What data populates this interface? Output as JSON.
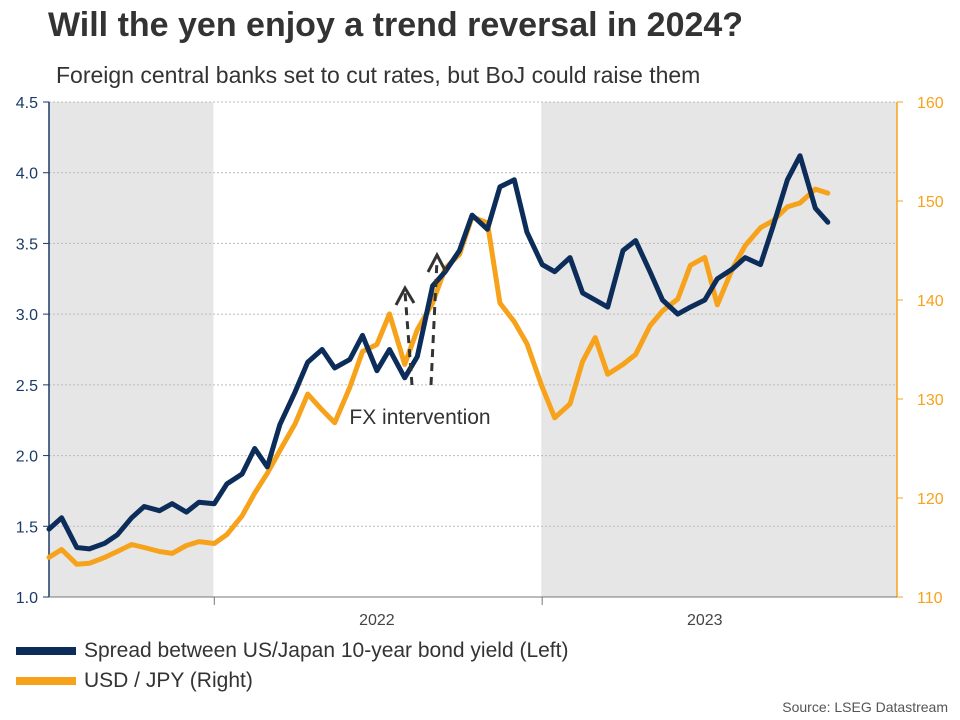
{
  "chart_data": {
    "type": "line",
    "title": "Will the yen enjoy a trend reversal in 2024?",
    "subtitle": "Foreign central banks set to cut rates, but BoJ could raise them",
    "x_tick_labels": [
      "2022",
      "2023"
    ],
    "left_axis": {
      "ylim": [
        1.0,
        4.5
      ],
      "ticks": [
        "1.0",
        "1.5",
        "2.0",
        "2.5",
        "3.0",
        "3.5",
        "4.0",
        "4.5"
      ]
    },
    "right_axis": {
      "ylim": [
        110,
        160
      ],
      "ticks": [
        "110",
        "120",
        "130",
        "140",
        "150",
        "160"
      ]
    },
    "grid": true,
    "legend_position": "bottom-left",
    "shaded_periods": [
      {
        "from": "2021-07-01",
        "to": "2021-12-31"
      },
      {
        "from": "2022-12-31",
        "to": "2024-01-31"
      }
    ],
    "annotation": "FX intervention",
    "source": "Source: LSEG Datastream",
    "series": [
      {
        "name": "Spread between US/Japan 10-year bond yield (Left)",
        "axis": "left",
        "color": "#0c2d5a",
        "points": [
          [
            "2021-07-01",
            1.48
          ],
          [
            "2021-07-15",
            1.56
          ],
          [
            "2021-08-01",
            1.35
          ],
          [
            "2021-08-15",
            1.34
          ],
          [
            "2021-09-01",
            1.38
          ],
          [
            "2021-09-15",
            1.44
          ],
          [
            "2021-10-01",
            1.56
          ],
          [
            "2021-10-15",
            1.64
          ],
          [
            "2021-11-01",
            1.61
          ],
          [
            "2021-11-15",
            1.66
          ],
          [
            "2021-12-01",
            1.6
          ],
          [
            "2021-12-15",
            1.67
          ],
          [
            "2022-01-01",
            1.66
          ],
          [
            "2022-01-15",
            1.8
          ],
          [
            "2022-02-01",
            1.87
          ],
          [
            "2022-02-15",
            2.05
          ],
          [
            "2022-03-01",
            1.92
          ],
          [
            "2022-03-15",
            2.22
          ],
          [
            "2022-04-01",
            2.45
          ],
          [
            "2022-04-15",
            2.66
          ],
          [
            "2022-05-01",
            2.75
          ],
          [
            "2022-05-15",
            2.62
          ],
          [
            "2022-06-01",
            2.68
          ],
          [
            "2022-06-15",
            2.85
          ],
          [
            "2022-07-01",
            2.6
          ],
          [
            "2022-07-15",
            2.75
          ],
          [
            "2022-08-01",
            2.55
          ],
          [
            "2022-08-15",
            2.7
          ],
          [
            "2022-09-01",
            3.2
          ],
          [
            "2022-09-15",
            3.3
          ],
          [
            "2022-10-01",
            3.45
          ],
          [
            "2022-10-15",
            3.7
          ],
          [
            "2022-11-01",
            3.6
          ],
          [
            "2022-11-15",
            3.9
          ],
          [
            "2022-12-01",
            3.95
          ],
          [
            "2022-12-15",
            3.58
          ],
          [
            "2023-01-01",
            3.35
          ],
          [
            "2023-01-15",
            3.3
          ],
          [
            "2023-02-01",
            3.4
          ],
          [
            "2023-02-15",
            3.15
          ],
          [
            "2023-03-01",
            3.1
          ],
          [
            "2023-03-15",
            3.05
          ],
          [
            "2023-04-01",
            3.45
          ],
          [
            "2023-04-15",
            3.52
          ],
          [
            "2023-05-01",
            3.3
          ],
          [
            "2023-05-15",
            3.1
          ],
          [
            "2023-06-01",
            3.0
          ],
          [
            "2023-06-15",
            3.05
          ],
          [
            "2023-07-01",
            3.1
          ],
          [
            "2023-07-15",
            3.25
          ],
          [
            "2023-08-01",
            3.32
          ],
          [
            "2023-08-15",
            3.4
          ],
          [
            "2023-09-01",
            3.35
          ],
          [
            "2023-09-15",
            3.62
          ],
          [
            "2023-10-01",
            3.95
          ],
          [
            "2023-10-15",
            4.12
          ],
          [
            "2023-11-01",
            3.75
          ],
          [
            "2023-11-15",
            3.65
          ]
        ]
      },
      {
        "name": "USD / JPY (Right)",
        "axis": "right",
        "color": "#f7a21b",
        "points": [
          [
            "2021-07-01",
            114.0
          ],
          [
            "2021-07-15",
            114.8
          ],
          [
            "2021-08-01",
            113.3
          ],
          [
            "2021-08-15",
            113.4
          ],
          [
            "2021-09-01",
            114.0
          ],
          [
            "2021-09-15",
            114.6
          ],
          [
            "2021-10-01",
            115.3
          ],
          [
            "2021-10-15",
            115.0
          ],
          [
            "2021-11-01",
            114.6
          ],
          [
            "2021-11-15",
            114.4
          ],
          [
            "2021-12-01",
            115.2
          ],
          [
            "2021-12-15",
            115.6
          ],
          [
            "2022-01-01",
            115.4
          ],
          [
            "2022-01-15",
            116.3
          ],
          [
            "2022-02-01",
            118.2
          ],
          [
            "2022-02-15",
            120.5
          ],
          [
            "2022-03-01",
            122.5
          ],
          [
            "2022-03-15",
            124.8
          ],
          [
            "2022-04-01",
            127.5
          ],
          [
            "2022-04-15",
            130.5
          ],
          [
            "2022-05-01",
            128.9
          ],
          [
            "2022-05-15",
            127.6
          ],
          [
            "2022-06-01",
            131.2
          ],
          [
            "2022-06-15",
            134.8
          ],
          [
            "2022-07-01",
            135.5
          ],
          [
            "2022-07-15",
            138.6
          ],
          [
            "2022-08-01",
            133.5
          ],
          [
            "2022-08-15",
            137.0
          ],
          [
            "2022-09-01",
            139.7
          ],
          [
            "2022-09-15",
            143.2
          ],
          [
            "2022-10-01",
            144.6
          ],
          [
            "2022-10-15",
            148.4
          ],
          [
            "2022-11-01",
            147.8
          ],
          [
            "2022-11-15",
            139.7
          ],
          [
            "2022-12-01",
            137.8
          ],
          [
            "2022-12-15",
            135.6
          ],
          [
            "2023-01-01",
            131.2
          ],
          [
            "2023-01-15",
            128.1
          ],
          [
            "2023-02-01",
            129.5
          ],
          [
            "2023-02-15",
            133.8
          ],
          [
            "2023-03-01",
            136.2
          ],
          [
            "2023-03-15",
            132.5
          ],
          [
            "2023-04-01",
            133.5
          ],
          [
            "2023-04-15",
            134.5
          ],
          [
            "2023-05-01",
            137.4
          ],
          [
            "2023-05-15",
            138.9
          ],
          [
            "2023-06-01",
            140.1
          ],
          [
            "2023-06-15",
            143.5
          ],
          [
            "2023-07-01",
            144.3
          ],
          [
            "2023-07-15",
            139.5
          ],
          [
            "2023-08-01",
            143.2
          ],
          [
            "2023-08-15",
            145.5
          ],
          [
            "2023-09-01",
            147.3
          ],
          [
            "2023-09-15",
            148.0
          ],
          [
            "2023-10-01",
            149.4
          ],
          [
            "2023-10-15",
            149.8
          ],
          [
            "2023-11-01",
            151.2
          ],
          [
            "2023-11-15",
            150.8
          ]
        ]
      }
    ]
  }
}
